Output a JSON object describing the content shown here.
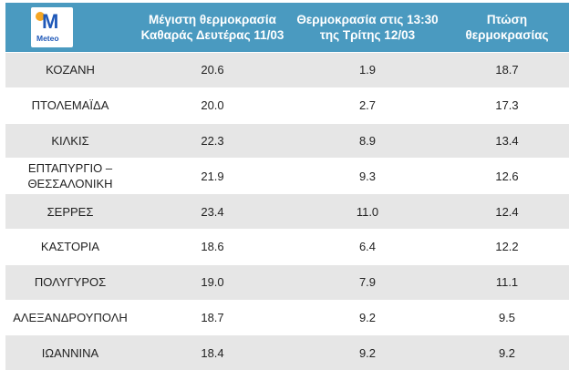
{
  "logo": {
    "text": "Meteo"
  },
  "header": {
    "col_max": "Μέγιστη θερμοκρασία\nΚαθαράς Δευτέρας 11/03",
    "col_now": "Θερμοκρασία  στις 13:30\nτης Τρίτης 12/03",
    "col_drop": "Πτώση\nθερμοκρασίας"
  },
  "rows": [
    {
      "city": "ΚΟΖΑΝΗ",
      "max": "20.6",
      "now": "1.9",
      "drop": "18.7"
    },
    {
      "city": "ΠΤΟΛΕΜΑΪΔΑ",
      "max": "20.0",
      "now": "2.7",
      "drop": "17.3"
    },
    {
      "city": "ΚΙΛΚΙΣ",
      "max": "22.3",
      "now": "8.9",
      "drop": "13.4"
    },
    {
      "city": "ΕΠΤΑΠΥΡΓΙΟ –\nΘΕΣΣΑΛΟΝΙΚΗ",
      "max": "21.9",
      "now": "9.3",
      "drop": "12.6"
    },
    {
      "city": "ΣΕΡΡΕΣ",
      "max": "23.4",
      "now": "11.0",
      "drop": "12.4"
    },
    {
      "city": "ΚΑΣΤΟΡΙΑ",
      "max": "18.6",
      "now": "6.4",
      "drop": "12.2"
    },
    {
      "city": "ΠΟΛΥΓΥΡΟΣ",
      "max": "19.0",
      "now": "7.9",
      "drop": "11.1"
    },
    {
      "city": "ΑΛΕΞΑΝΔΡΟΥΠΟΛΗ",
      "max": "18.7",
      "now": "9.2",
      "drop": "9.5"
    },
    {
      "city": "ΙΩΑΝΝΙΝΑ",
      "max": "18.4",
      "now": "9.2",
      "drop": "9.2"
    }
  ]
}
